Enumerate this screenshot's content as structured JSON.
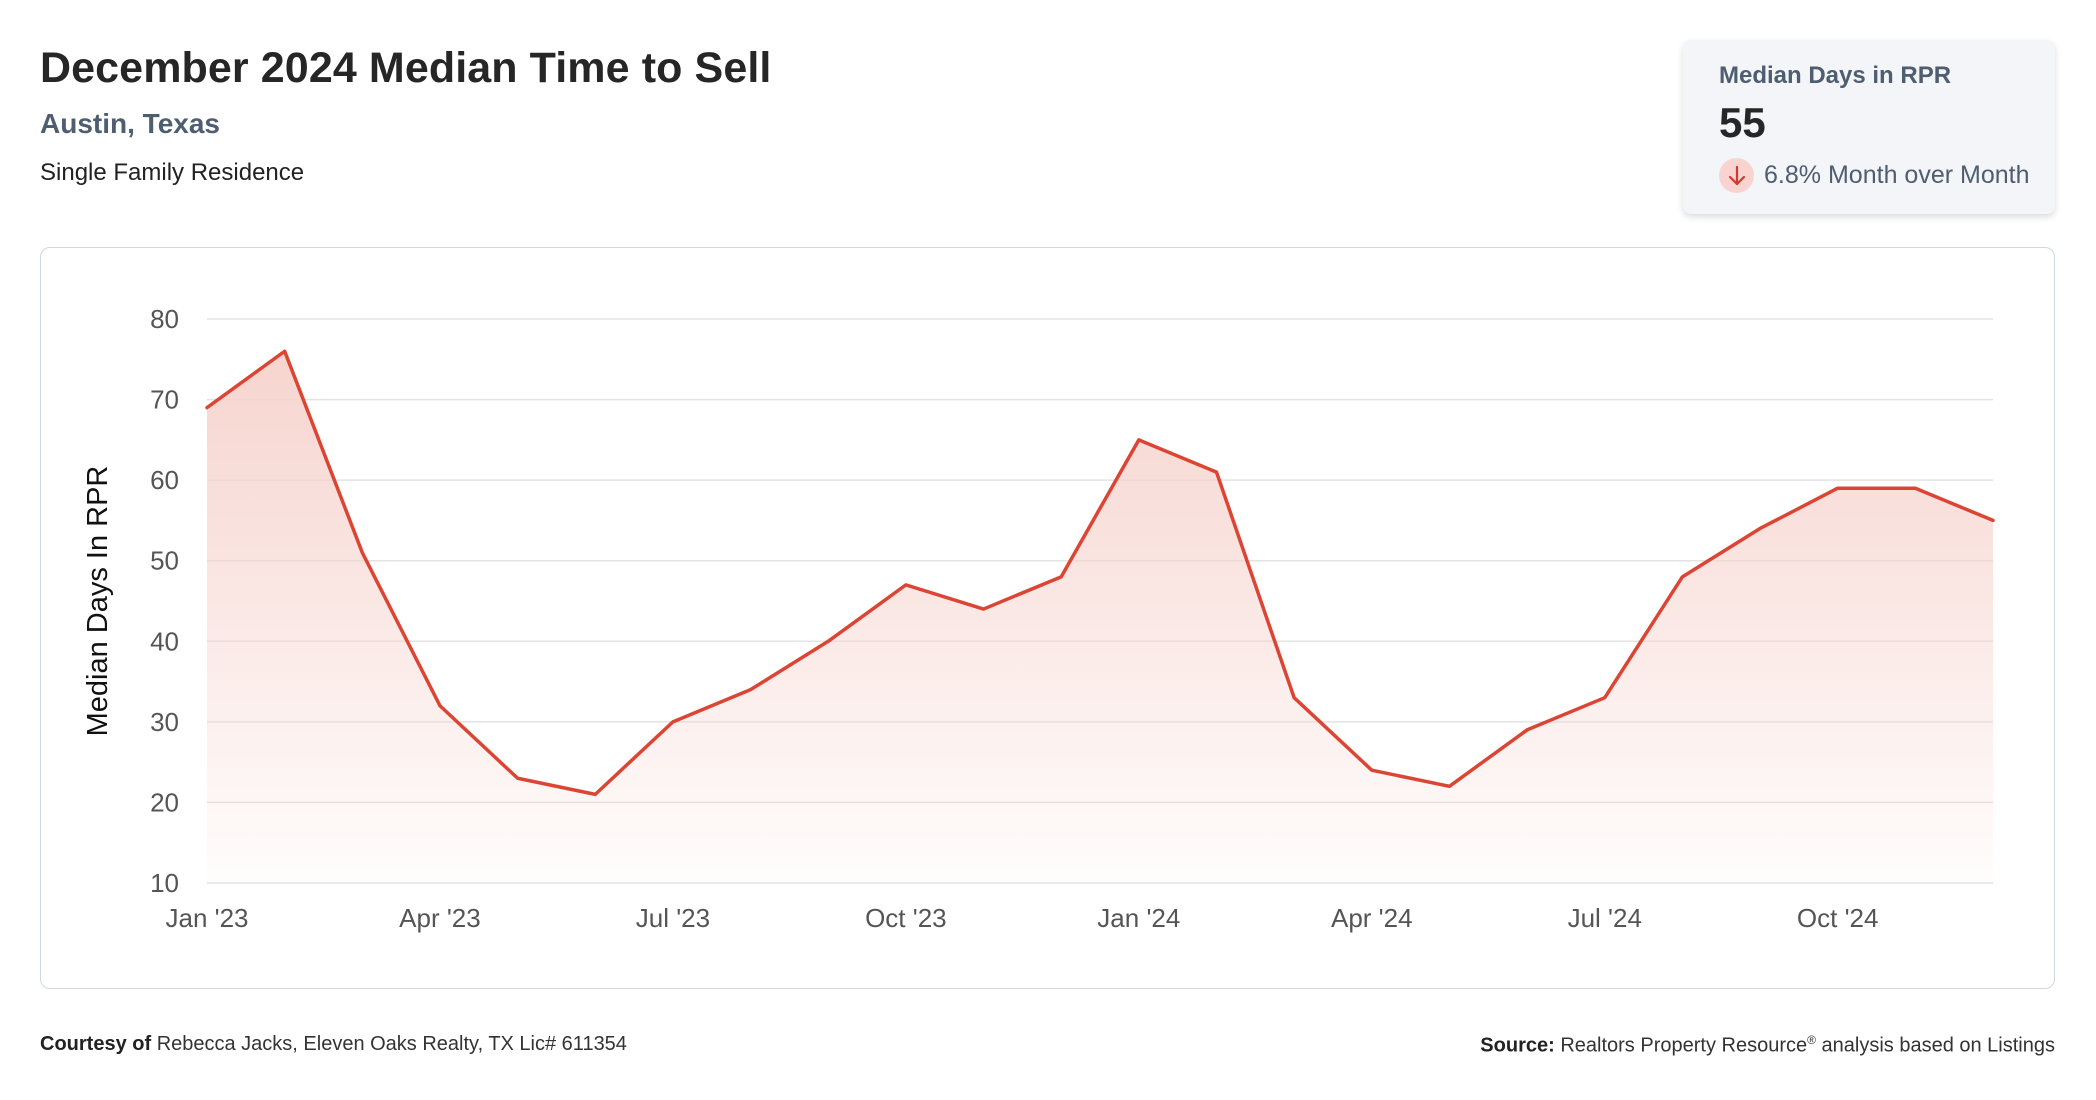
{
  "header": {
    "title": "December 2024 Median Time to Sell",
    "location": "Austin, Texas",
    "property_type": "Single Family Residence"
  },
  "kpi": {
    "label": "Median Days in RPR",
    "value": "55",
    "change_value": "6.8%",
    "change_text": "Month over Month",
    "direction_icon": "arrow-down-icon"
  },
  "colors": {
    "line": "#dc4433",
    "fill_top": "#f6d2cc",
    "grid": "#e3e3e3",
    "kpi_bg": "#f3f5f9",
    "label_blue": "#4f5d71"
  },
  "chart_data": {
    "type": "area",
    "ylabel": "Median Days In RPR",
    "xlabel": "",
    "ylim": [
      10,
      80
    ],
    "yticks": [
      10,
      20,
      30,
      40,
      50,
      60,
      70,
      80
    ],
    "x_tick_labels": [
      "Jan '23",
      "Apr '23",
      "Jul '23",
      "Oct '23",
      "Jan '24",
      "Apr '24",
      "Jul '24",
      "Oct '24"
    ],
    "x_tick_index": [
      0,
      3,
      6,
      9,
      12,
      15,
      18,
      21
    ],
    "x": [
      "2023-01",
      "2023-02",
      "2023-03",
      "2023-04",
      "2023-05",
      "2023-06",
      "2023-07",
      "2023-08",
      "2023-09",
      "2023-10",
      "2023-11",
      "2023-12",
      "2024-01",
      "2024-02",
      "2024-03",
      "2024-04",
      "2024-05",
      "2024-06",
      "2024-07",
      "2024-08",
      "2024-09",
      "2024-10",
      "2024-11",
      "2024-12"
    ],
    "series": [
      {
        "values": [
          69,
          76,
          51,
          32,
          23,
          21,
          30,
          34,
          40,
          47,
          44,
          48,
          65,
          61,
          33,
          24,
          22,
          29,
          33,
          48,
          54,
          59,
          59,
          55
        ]
      }
    ],
    "grid": true,
    "legend": "none"
  },
  "footer": {
    "courtesy_label": "Courtesy of",
    "courtesy_text": "Rebecca Jacks, Eleven Oaks Realty, TX Lic# 611354",
    "source_label": "Source:",
    "source_text_1": "Realtors Property Resource",
    "source_reg": "®",
    "source_text_2": "analysis based on Listings"
  }
}
